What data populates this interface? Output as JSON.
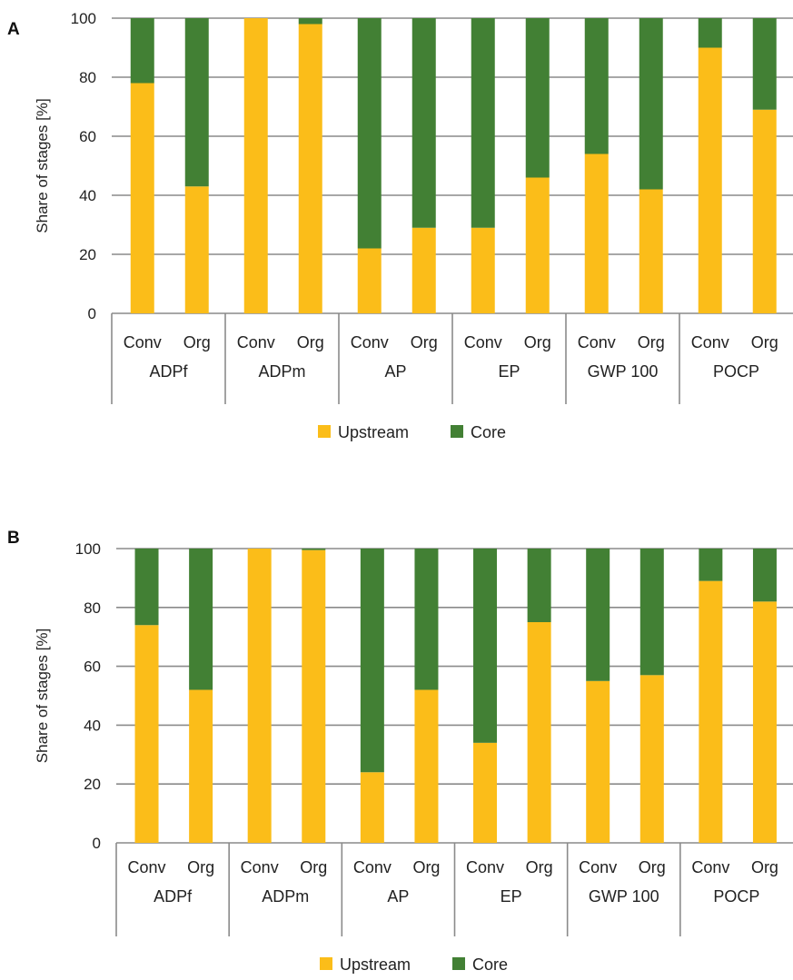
{
  "colors": {
    "upstream": "#fbbd19",
    "core": "#428034",
    "grid": "#8a8a8a",
    "axis": "#8a8a8a"
  },
  "chart_data": [
    {
      "type": "bar",
      "stacked": true,
      "panel_label": "A",
      "ylabel": "Share of stages [%]",
      "ylim": [
        0,
        100
      ],
      "yticks": [
        0,
        20,
        40,
        60,
        80,
        100
      ],
      "grid": true,
      "legend_position": "bottom",
      "groups": [
        "ADPf",
        "ADPm",
        "AP",
        "EP",
        "GWP 100",
        "POCP"
      ],
      "subcategories": [
        "Conv",
        "Org"
      ],
      "series": [
        {
          "name": "Upstream",
          "values": [
            78,
            43,
            100,
            98,
            22,
            29,
            29,
            46,
            54,
            42,
            90,
            69
          ]
        },
        {
          "name": "Core",
          "values": [
            22,
            57,
            0,
            2,
            78,
            71,
            71,
            54,
            46,
            58,
            10,
            31
          ]
        }
      ]
    },
    {
      "type": "bar",
      "stacked": true,
      "panel_label": "B",
      "ylabel": "Share of stages [%]",
      "ylim": [
        0,
        100
      ],
      "yticks": [
        0,
        20,
        40,
        60,
        80,
        100
      ],
      "grid": true,
      "legend_position": "bottom",
      "groups": [
        "ADPf",
        "ADPm",
        "AP",
        "EP",
        "GWP 100",
        "POCP"
      ],
      "subcategories": [
        "Conv",
        "Org"
      ],
      "series": [
        {
          "name": "Upstream",
          "values": [
            74,
            52,
            100,
            99.5,
            24,
            52,
            34,
            75,
            55,
            57,
            89,
            82
          ]
        },
        {
          "name": "Core",
          "values": [
            26,
            48,
            0,
            0.5,
            76,
            48,
            66,
            25,
            45,
            43,
            11,
            18
          ]
        }
      ]
    }
  ]
}
